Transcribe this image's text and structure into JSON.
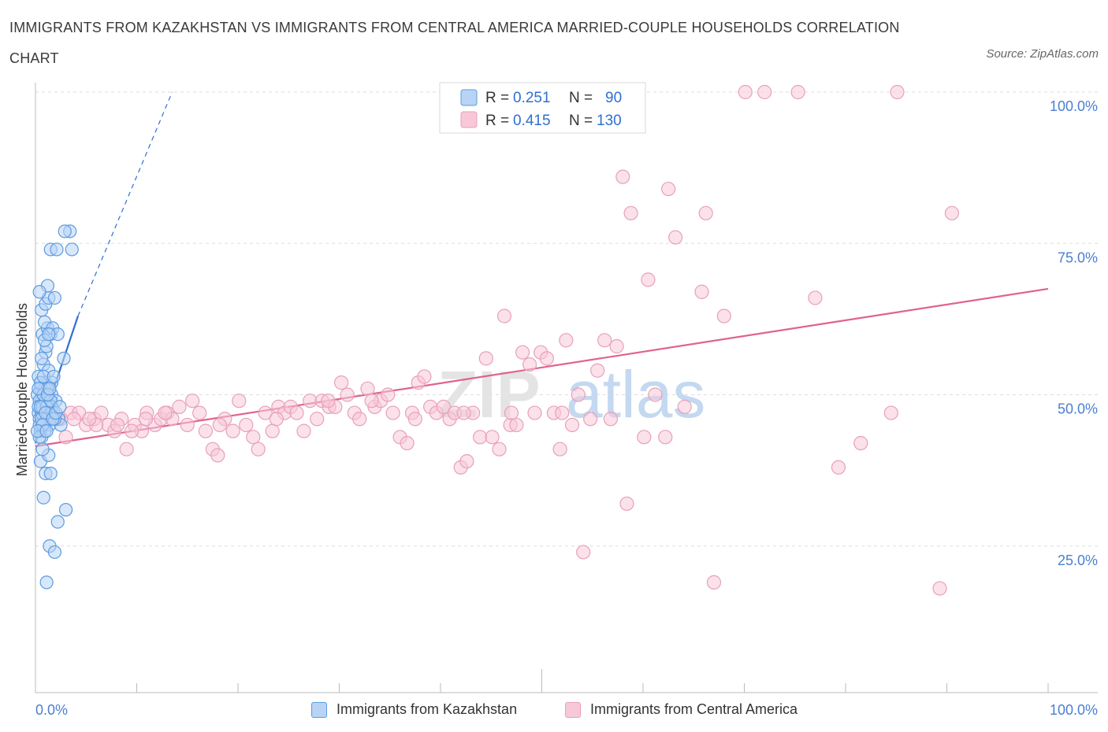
{
  "title": "IMMIGRANTS FROM KAZAKHSTAN VS IMMIGRANTS FROM CENTRAL AMERICA MARRIED-COUPLE HOUSEHOLDS CORRELATION CHART",
  "source": "Source: ZipAtlas.com",
  "watermark": {
    "zip": "ZIP",
    "atlas": "atlas"
  },
  "stats_legend": [
    {
      "r_label": "R =",
      "r_value": "0.251",
      "n_label": "N =",
      "n_value": "90",
      "color": "#4a90d9"
    },
    {
      "r_label": "R =",
      "r_value": "0.415",
      "n_label": "N =",
      "n_value": "130",
      "color": "#e07aa0"
    }
  ],
  "bottom_legend": [
    {
      "label": "Immigrants from Kazakhstan",
      "color": "#4a90d9"
    },
    {
      "label": "Immigrants from Central America",
      "color": "#e07aa0"
    }
  ],
  "colors": {
    "blue_fill": "#b8d4f5",
    "blue_stroke": "#5b9be0",
    "blue_line": "#2f6fd0",
    "pink_fill": "#f8c8d8",
    "pink_stroke": "#e8a0ba",
    "pink_line": "#e0628e",
    "tick_label": "#4a7fd0",
    "grid": "#dddddd"
  },
  "chart_data": {
    "type": "scatter",
    "xlabel": "",
    "ylabel": "Married-couple Households",
    "xlim": [
      0,
      100
    ],
    "ylim": [
      0,
      100
    ],
    "x_tick_labels": [
      {
        "value": 0,
        "label": "0.0%"
      },
      {
        "value": 100,
        "label": "100.0%"
      }
    ],
    "y_tick_labels": [
      {
        "value": 25,
        "label": "25.0%"
      },
      {
        "value": 50,
        "label": "50.0%"
      },
      {
        "value": 75,
        "label": "75.0%"
      },
      {
        "value": 100,
        "label": "100.0%"
      }
    ],
    "grid": true,
    "series": [
      {
        "name": "Immigrants from Kazakhstan",
        "trend_line": {
          "x0": 0,
          "y0": 42,
          "x1": 4.2,
          "y1": 63
        },
        "trend_extension": {
          "x0": 4.2,
          "y0": 63,
          "x1": 13.5,
          "y1": 100
        },
        "points": [
          [
            0.3,
            47
          ],
          [
            0.5,
            51
          ],
          [
            0.6,
            49
          ],
          [
            0.8,
            48
          ],
          [
            0.4,
            46
          ],
          [
            0.7,
            50
          ],
          [
            1.0,
            52
          ],
          [
            1.2,
            47
          ],
          [
            0.9,
            45
          ],
          [
            0.5,
            44
          ],
          [
            0.6,
            43
          ],
          [
            1.1,
            49
          ],
          [
            1.4,
            48
          ],
          [
            1.6,
            50
          ],
          [
            0.3,
            53
          ],
          [
            0.8,
            55
          ],
          [
            1.3,
            54
          ],
          [
            1.0,
            57
          ],
          [
            0.7,
            60
          ],
          [
            1.2,
            61
          ],
          [
            1.5,
            60
          ],
          [
            0.9,
            62
          ],
          [
            1.7,
            61
          ],
          [
            2.2,
            60
          ],
          [
            1.1,
            58
          ],
          [
            0.6,
            64
          ],
          [
            1.0,
            65
          ],
          [
            1.3,
            66
          ],
          [
            1.9,
            66
          ],
          [
            1.2,
            68
          ],
          [
            0.4,
            67
          ],
          [
            1.5,
            74
          ],
          [
            2.1,
            74
          ],
          [
            3.4,
            77
          ],
          [
            2.9,
            77
          ],
          [
            3.6,
            74
          ],
          [
            0.5,
            39
          ],
          [
            1.0,
            37
          ],
          [
            1.5,
            37
          ],
          [
            1.3,
            40
          ],
          [
            0.7,
            41
          ],
          [
            0.8,
            33
          ],
          [
            2.2,
            29
          ],
          [
            3.0,
            31
          ],
          [
            1.4,
            25
          ],
          [
            1.9,
            24
          ],
          [
            1.1,
            19
          ],
          [
            2.8,
            56
          ],
          [
            1.6,
            52
          ],
          [
            2.0,
            49
          ],
          [
            0.2,
            50
          ],
          [
            0.4,
            49
          ],
          [
            0.9,
            51
          ],
          [
            1.8,
            47
          ],
          [
            2.3,
            46
          ],
          [
            0.6,
            47
          ],
          [
            1.1,
            46
          ],
          [
            1.4,
            45
          ],
          [
            0.3,
            48
          ],
          [
            0.5,
            52
          ],
          [
            0.8,
            53
          ],
          [
            1.2,
            51
          ],
          [
            0.7,
            48
          ],
          [
            1.0,
            49
          ],
          [
            1.3,
            47
          ],
          [
            2.5,
            45
          ],
          [
            0.4,
            45
          ],
          [
            0.9,
            44
          ],
          [
            1.6,
            48
          ],
          [
            1.9,
            46
          ],
          [
            0.6,
            46
          ],
          [
            0.8,
            50
          ],
          [
            1.1,
            48
          ],
          [
            1.5,
            49
          ],
          [
            0.3,
            51
          ],
          [
            0.5,
            48
          ],
          [
            0.7,
            45
          ],
          [
            1.0,
            47
          ],
          [
            1.2,
            50
          ],
          [
            1.4,
            51
          ],
          [
            1.7,
            46
          ],
          [
            2.0,
            47
          ],
          [
            0.9,
            59
          ],
          [
            1.3,
            60
          ],
          [
            0.6,
            56
          ],
          [
            1.8,
            53
          ],
          [
            0.4,
            43
          ],
          [
            0.2,
            44
          ],
          [
            1.1,
            44
          ],
          [
            2.4,
            48
          ]
        ]
      },
      {
        "name": "Immigrants from Central America",
        "trend_line": {
          "x0": 0,
          "y0": 41.5,
          "x1": 100,
          "y1": 67.5
        },
        "points": [
          [
            0.8,
            47
          ],
          [
            1.5,
            48
          ],
          [
            2.2,
            46
          ],
          [
            3.0,
            43
          ],
          [
            3.5,
            47
          ],
          [
            4.3,
            47
          ],
          [
            5.0,
            45
          ],
          [
            5.8,
            46
          ],
          [
            6.5,
            47
          ],
          [
            7.2,
            45
          ],
          [
            7.8,
            44
          ],
          [
            8.5,
            46
          ],
          [
            9.0,
            41
          ],
          [
            9.8,
            45
          ],
          [
            10.5,
            44
          ],
          [
            11.0,
            47
          ],
          [
            11.8,
            45
          ],
          [
            12.4,
            46
          ],
          [
            13.0,
            47
          ],
          [
            13.5,
            46
          ],
          [
            14.2,
            48
          ],
          [
            15.0,
            45
          ],
          [
            15.5,
            49
          ],
          [
            16.2,
            47
          ],
          [
            16.8,
            44
          ],
          [
            17.5,
            41
          ],
          [
            18.0,
            40
          ],
          [
            18.7,
            46
          ],
          [
            19.5,
            44
          ],
          [
            20.1,
            49
          ],
          [
            20.8,
            45
          ],
          [
            21.5,
            43
          ],
          [
            22.0,
            41
          ],
          [
            22.7,
            47
          ],
          [
            23.4,
            44
          ],
          [
            24.0,
            48
          ],
          [
            24.6,
            47
          ],
          [
            25.2,
            48
          ],
          [
            25.8,
            47
          ],
          [
            26.5,
            44
          ],
          [
            27.1,
            49
          ],
          [
            27.8,
            46
          ],
          [
            28.3,
            49
          ],
          [
            29.0,
            48
          ],
          [
            29.6,
            48
          ],
          [
            30.2,
            52
          ],
          [
            30.8,
            50
          ],
          [
            31.5,
            47
          ],
          [
            32.0,
            46
          ],
          [
            32.8,
            51
          ],
          [
            33.5,
            48
          ],
          [
            34.1,
            49
          ],
          [
            34.8,
            50
          ],
          [
            35.3,
            47
          ],
          [
            36.0,
            43
          ],
          [
            36.7,
            42
          ],
          [
            37.2,
            47
          ],
          [
            37.8,
            52
          ],
          [
            38.4,
            53
          ],
          [
            39.0,
            48
          ],
          [
            39.6,
            47
          ],
          [
            40.3,
            48
          ],
          [
            40.9,
            46
          ],
          [
            41.4,
            47
          ],
          [
            42.0,
            38
          ],
          [
            42.6,
            39
          ],
          [
            43.2,
            47
          ],
          [
            43.9,
            43
          ],
          [
            44.5,
            56
          ],
          [
            45.1,
            43
          ],
          [
            45.8,
            41
          ],
          [
            46.3,
            63
          ],
          [
            46.9,
            45
          ],
          [
            47.5,
            45
          ],
          [
            48.1,
            57
          ],
          [
            48.8,
            55
          ],
          [
            49.3,
            47
          ],
          [
            49.9,
            57
          ],
          [
            50.5,
            56
          ],
          [
            51.2,
            47
          ],
          [
            51.8,
            41
          ],
          [
            52.4,
            59
          ],
          [
            53.0,
            45
          ],
          [
            53.6,
            50
          ],
          [
            54.1,
            24
          ],
          [
            54.8,
            46
          ],
          [
            55.5,
            54
          ],
          [
            56.2,
            59
          ],
          [
            56.8,
            46
          ],
          [
            57.4,
            58
          ],
          [
            58.0,
            86
          ],
          [
            58.4,
            32
          ],
          [
            58.8,
            80
          ],
          [
            60.1,
            43
          ],
          [
            61.2,
            50
          ],
          [
            62.2,
            43
          ],
          [
            60.5,
            69
          ],
          [
            62.5,
            84
          ],
          [
            63.2,
            76
          ],
          [
            64.1,
            48
          ],
          [
            65.8,
            67
          ],
          [
            66.2,
            80
          ],
          [
            67.0,
            19
          ],
          [
            68.0,
            63
          ],
          [
            70.1,
            100
          ],
          [
            72.0,
            100
          ],
          [
            75.3,
            100
          ],
          [
            77.0,
            66
          ],
          [
            79.3,
            38
          ],
          [
            81.5,
            42
          ],
          [
            84.5,
            47
          ],
          [
            85.1,
            100
          ],
          [
            89.3,
            18
          ],
          [
            90.5,
            80
          ],
          [
            2.5,
            46
          ],
          [
            6.0,
            45
          ],
          [
            9.5,
            44
          ],
          [
            12.8,
            47
          ],
          [
            18.2,
            45
          ],
          [
            23.8,
            46
          ],
          [
            28.9,
            49
          ],
          [
            33.2,
            49
          ],
          [
            37.5,
            46
          ],
          [
            42.3,
            47
          ],
          [
            47.0,
            47
          ],
          [
            52.0,
            47
          ],
          [
            3.8,
            46
          ],
          [
            5.3,
            46
          ],
          [
            8.1,
            45
          ],
          [
            10.9,
            46
          ]
        ]
      }
    ]
  }
}
